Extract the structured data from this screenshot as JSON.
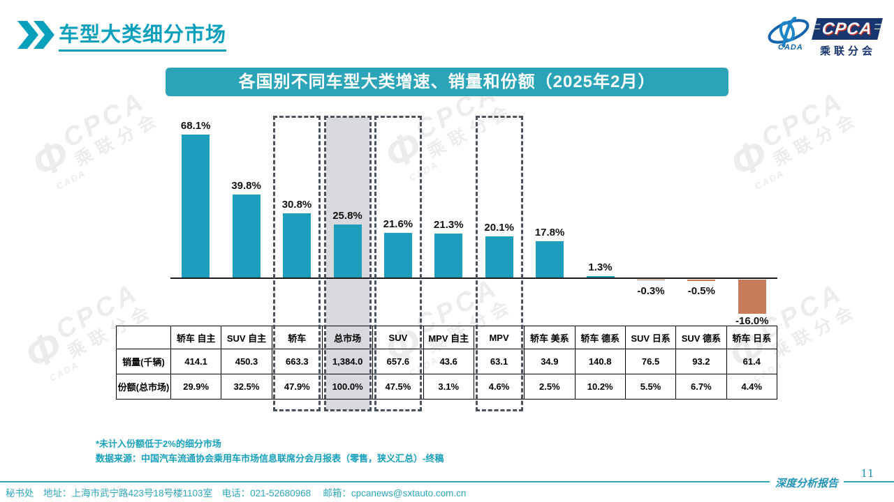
{
  "header": {
    "title": "车型大类细分市场"
  },
  "logo": {
    "cpca": "CPCA",
    "society": "乘联分会",
    "cada": "CADA"
  },
  "watermark": {
    "cpca": "CPCA",
    "society": "乘联分会",
    "cada": "CADA",
    "phi": "Φ"
  },
  "chart_data": {
    "type": "bar",
    "title": "各国别不同车型大类增速、销量和份额（2025年2月）",
    "categories": [
      "轿车 自主",
      "SUV 自主",
      "轿车",
      "总市场",
      "SUV",
      "MPV 自主",
      "MPV",
      "轿车 美系",
      "轿车 德系",
      "SUV 日系",
      "SUV 德系",
      "轿车 日系"
    ],
    "values": [
      68.1,
      39.8,
      30.8,
      25.8,
      21.6,
      21.3,
      20.1,
      17.8,
      1.3,
      -0.3,
      -0.5,
      -16.0
    ],
    "value_labels": [
      "68.1%",
      "39.8%",
      "30.8%",
      "25.8%",
      "21.6%",
      "21.3%",
      "20.1%",
      "17.8%",
      "1.3%",
      "-0.3%",
      "-0.5%",
      "-16.0%"
    ],
    "table_rows": [
      {
        "label": "销量(千辆)",
        "values": [
          "414.1",
          "450.3",
          "663.3",
          "1,384.0",
          "657.6",
          "43.6",
          "63.1",
          "34.9",
          "140.8",
          "76.5",
          "93.2",
          "61.4"
        ]
      },
      {
        "label": "份额(总市场)",
        "values": [
          "29.9%",
          "32.5%",
          "47.9%",
          "100.0%",
          "47.5%",
          "3.1%",
          "4.6%",
          "2.5%",
          "10.2%",
          "5.5%",
          "6.7%",
          "4.4%"
        ]
      }
    ],
    "sales_thousand_numeric": [
      414.1,
      450.3,
      663.3,
      1384.0,
      657.6,
      43.6,
      63.1,
      34.9,
      140.8,
      76.5,
      93.2,
      61.4
    ],
    "share_pct_numeric": [
      29.9,
      32.5,
      47.9,
      100.0,
      47.5,
      3.1,
      4.6,
      2.5,
      10.2,
      5.5,
      6.7,
      4.4
    ],
    "highlight_indices": [
      2,
      3,
      4,
      6
    ],
    "shaded_index": 3,
    "positive_color": "#1C9EBC",
    "negative_color": "#C97C5C",
    "grid": false,
    "legend": "none",
    "baseline": 0
  },
  "footnotes": {
    "line1": "*未计入份额低于2%的细分市场",
    "line2": "数据来源：中国汽车流通协会乘用车市场信息联席分会月报表（零售，狭义汇总）-终稿"
  },
  "footer": {
    "secretariat": "秘书处　地址：上海市武宁路423号18号楼1103室　电话：021-52680968　 邮箱：cpcanews@sxtauto.com.cn",
    "report_label": "深度分析报告",
    "page_number": "11"
  },
  "colors": {
    "accent_teal": "#0AA0BC",
    "bar_teal": "#1C9EBC",
    "bar_salmon": "#C97C5C",
    "shade_gray": "#D8D9DD",
    "logo_navy": "#17356F"
  }
}
